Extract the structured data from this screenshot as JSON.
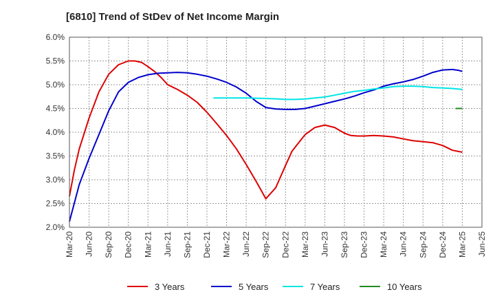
{
  "chart_data": {
    "type": "line",
    "title": "[6810]  Trend of StDev of Net Income Margin",
    "xlabel": "",
    "ylabel": "",
    "ylim": [
      2.0,
      6.0
    ],
    "y_ticks": [
      "2.0%",
      "2.5%",
      "3.0%",
      "3.5%",
      "4.0%",
      "4.5%",
      "5.0%",
      "5.5%",
      "6.0%"
    ],
    "x_ticks": [
      "Mar-20",
      "Jun-20",
      "Sep-20",
      "Dec-20",
      "Mar-21",
      "Jun-21",
      "Sep-21",
      "Dec-21",
      "Mar-22",
      "Jun-22",
      "Sep-22",
      "Dec-22",
      "Mar-23",
      "Jun-23",
      "Sep-23",
      "Dec-23",
      "Mar-24",
      "Jun-24",
      "Sep-24",
      "Dec-24",
      "Mar-25",
      "Jun-25"
    ],
    "grid": true,
    "legend_position": "bottom",
    "series": [
      {
        "name": "3 Years",
        "color": "#dd0000",
        "x": [
          0,
          0.25,
          0.5,
          1,
          1.5,
          2,
          2.5,
          3,
          3.33,
          3.67,
          4,
          4.33,
          4.67,
          5,
          5.5,
          6,
          6.5,
          7,
          7.5,
          8,
          8.5,
          9,
          9.5,
          10,
          10.5,
          11,
          11.33,
          11.67,
          12,
          12.5,
          13,
          13.5,
          14,
          14.33,
          14.67,
          15,
          15.5,
          16,
          16.5,
          17,
          17.5,
          18,
          18.5,
          19,
          19.5,
          20
        ],
        "y": [
          2.65,
          3.2,
          3.65,
          4.3,
          4.85,
          5.22,
          5.42,
          5.5,
          5.5,
          5.47,
          5.38,
          5.28,
          5.15,
          5.0,
          4.9,
          4.78,
          4.63,
          4.42,
          4.18,
          3.93,
          3.65,
          3.32,
          2.97,
          2.6,
          2.83,
          3.3,
          3.6,
          3.78,
          3.95,
          4.1,
          4.15,
          4.1,
          3.98,
          3.93,
          3.92,
          3.92,
          3.93,
          3.92,
          3.9,
          3.86,
          3.82,
          3.8,
          3.78,
          3.72,
          3.62,
          3.58
        ]
      },
      {
        "name": "5 Years",
        "color": "#0000cc",
        "x": [
          0,
          0.5,
          1,
          1.5,
          2,
          2.5,
          3,
          3.5,
          4,
          4.5,
          5,
          5.5,
          6,
          6.5,
          7,
          7.5,
          8,
          8.5,
          9,
          9.5,
          10,
          10.5,
          11,
          11.5,
          12,
          12.5,
          13,
          13.5,
          14,
          14.5,
          15,
          15.5,
          16,
          16.5,
          17,
          17.5,
          18,
          18.5,
          19,
          19.5,
          19.83,
          20
        ],
        "y": [
          2.12,
          2.9,
          3.45,
          3.95,
          4.45,
          4.85,
          5.05,
          5.15,
          5.21,
          5.24,
          5.25,
          5.26,
          5.25,
          5.22,
          5.18,
          5.12,
          5.05,
          4.95,
          4.82,
          4.65,
          4.52,
          4.49,
          4.48,
          4.48,
          4.5,
          4.55,
          4.6,
          4.65,
          4.7,
          4.76,
          4.83,
          4.89,
          4.97,
          5.02,
          5.06,
          5.11,
          5.18,
          5.26,
          5.31,
          5.32,
          5.3,
          5.28
        ]
      },
      {
        "name": "7 Years",
        "color": "#00e5e5",
        "x": [
          7.33,
          8,
          9,
          10,
          10.67,
          11,
          11.5,
          12,
          12.5,
          13,
          13.5,
          14,
          14.5,
          15,
          15.5,
          16,
          16.5,
          17,
          17.5,
          18,
          18.5,
          19,
          19.5,
          20
        ],
        "y": [
          4.72,
          4.72,
          4.72,
          4.71,
          4.7,
          4.69,
          4.69,
          4.7,
          4.72,
          4.74,
          4.78,
          4.82,
          4.86,
          4.88,
          4.91,
          4.93,
          4.96,
          4.97,
          4.97,
          4.96,
          4.94,
          4.93,
          4.92,
          4.9
        ]
      },
      {
        "name": "10 Years",
        "color": "#228b22",
        "x": [
          19.67,
          20
        ],
        "y": [
          4.5,
          4.5
        ]
      }
    ]
  }
}
